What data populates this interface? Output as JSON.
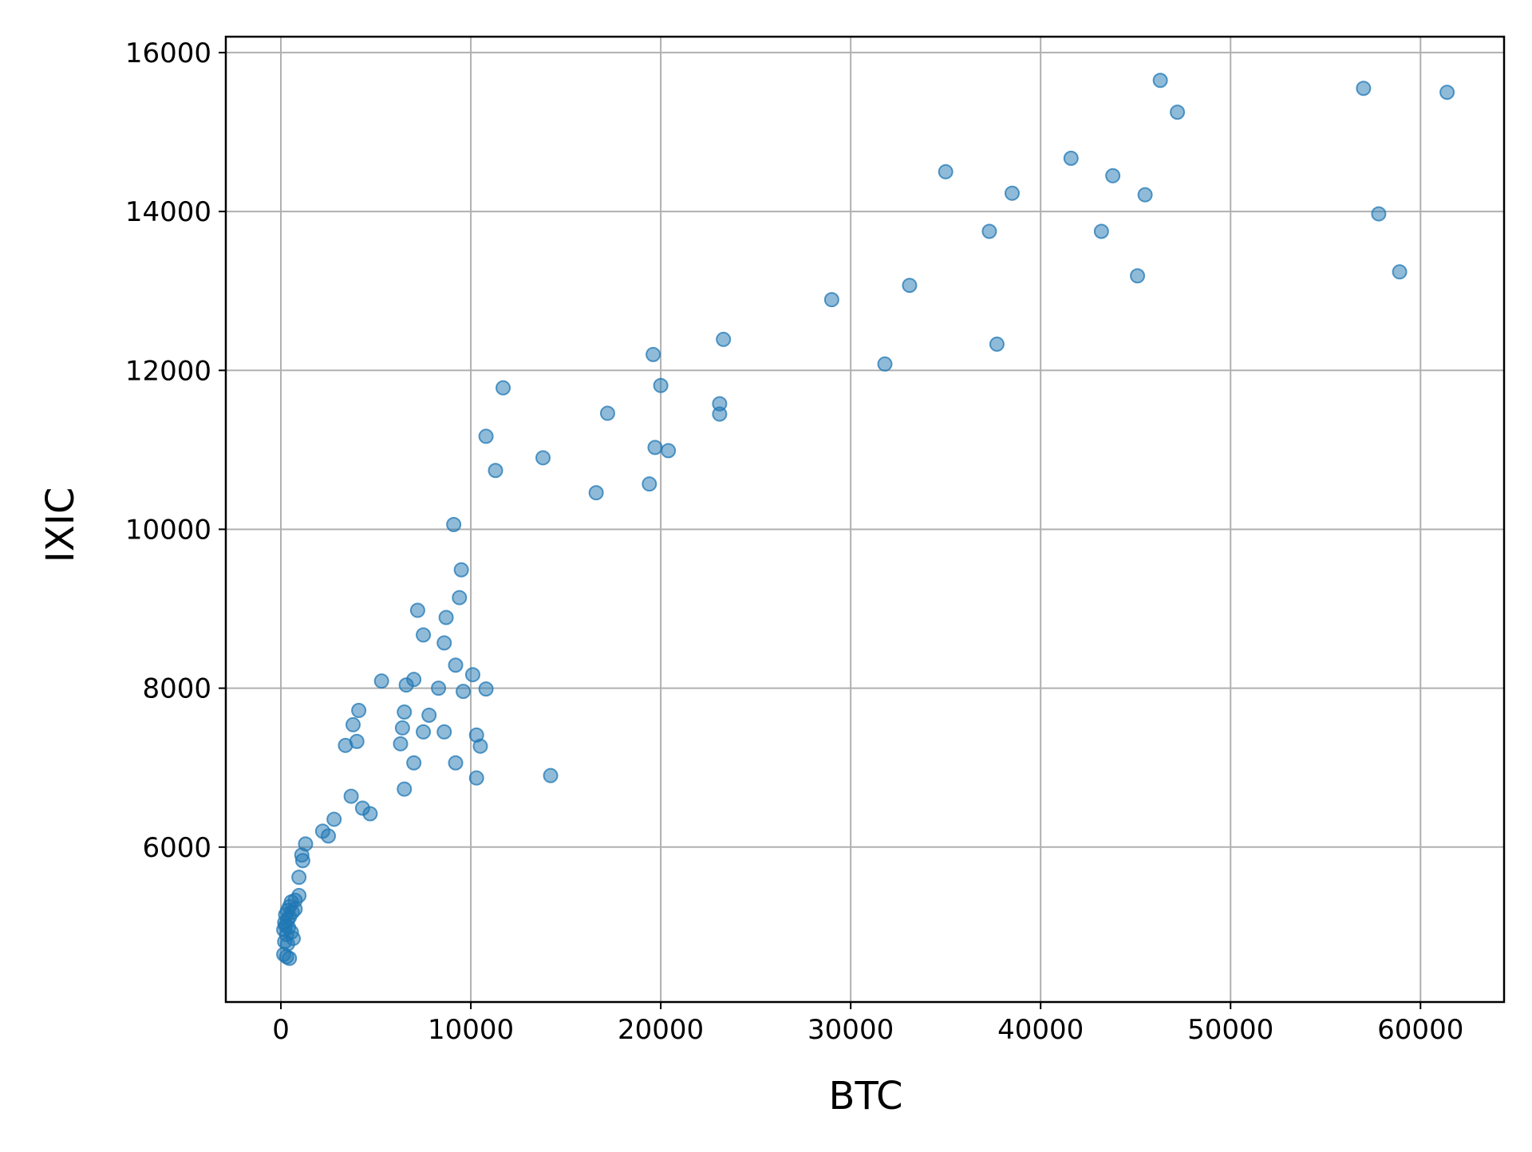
{
  "chart_data": {
    "type": "scatter",
    "title": "",
    "xlabel": "BTC",
    "ylabel": "IXIC",
    "xlim": [
      -2900,
      64400
    ],
    "ylim": [
      4050,
      16200
    ],
    "xticks": [
      0,
      10000,
      20000,
      30000,
      40000,
      50000,
      60000
    ],
    "yticks": [
      6000,
      8000,
      10000,
      12000,
      14000,
      16000
    ],
    "xtick_labels": [
      "0",
      "10000",
      "20000",
      "30000",
      "40000",
      "50000",
      "60000"
    ],
    "ytick_labels": [
      "6000",
      "8000",
      "10000",
      "12000",
      "14000",
      "16000"
    ],
    "grid": true,
    "legend": "none",
    "colors": {
      "marker": "#1f77b4",
      "grid": "#b0b0b0",
      "axes": "#000000"
    },
    "marker_opacity": 0.5,
    "series": [
      {
        "points": [
          [
            46300,
            15650
          ],
          [
            57000,
            15550
          ],
          [
            61400,
            15500
          ],
          [
            47200,
            15250
          ],
          [
            41600,
            14670
          ],
          [
            35000,
            14500
          ],
          [
            43800,
            14450
          ],
          [
            38500,
            14230
          ],
          [
            45500,
            14210
          ],
          [
            57800,
            13970
          ],
          [
            37300,
            13750
          ],
          [
            43200,
            13750
          ],
          [
            58900,
            13240
          ],
          [
            45100,
            13190
          ],
          [
            33100,
            13070
          ],
          [
            29000,
            12890
          ],
          [
            23300,
            12390
          ],
          [
            37700,
            12330
          ],
          [
            19600,
            12200
          ],
          [
            31800,
            12080
          ],
          [
            20000,
            11810
          ],
          [
            11700,
            11780
          ],
          [
            23100,
            11580
          ],
          [
            17200,
            11460
          ],
          [
            23100,
            11450
          ],
          [
            10800,
            11170
          ],
          [
            19700,
            11030
          ],
          [
            20400,
            10990
          ],
          [
            13800,
            10900
          ],
          [
            11300,
            10740
          ],
          [
            19400,
            10570
          ],
          [
            16600,
            10460
          ],
          [
            9100,
            10060
          ],
          [
            9500,
            9490
          ],
          [
            9400,
            9140
          ],
          [
            7200,
            8980
          ],
          [
            8700,
            8890
          ],
          [
            7500,
            8670
          ],
          [
            8600,
            8570
          ],
          [
            9200,
            8290
          ],
          [
            10100,
            8170
          ],
          [
            7000,
            8110
          ],
          [
            5300,
            8090
          ],
          [
            6600,
            8040
          ],
          [
            8300,
            8000
          ],
          [
            10800,
            7990
          ],
          [
            9600,
            7960
          ],
          [
            4100,
            7720
          ],
          [
            6500,
            7700
          ],
          [
            7800,
            7660
          ],
          [
            3800,
            7540
          ],
          [
            6400,
            7500
          ],
          [
            7500,
            7450
          ],
          [
            8600,
            7450
          ],
          [
            10300,
            7410
          ],
          [
            4000,
            7330
          ],
          [
            6300,
            7300
          ],
          [
            3400,
            7280
          ],
          [
            10500,
            7270
          ],
          [
            7000,
            7060
          ],
          [
            9200,
            7060
          ],
          [
            14200,
            6900
          ],
          [
            10300,
            6870
          ],
          [
            6500,
            6730
          ],
          [
            3700,
            6640
          ],
          [
            4300,
            6490
          ],
          [
            4700,
            6420
          ],
          [
            2800,
            6350
          ],
          [
            2200,
            6200
          ],
          [
            2500,
            6140
          ],
          [
            1300,
            6040
          ],
          [
            1100,
            5900
          ],
          [
            1150,
            5830
          ],
          [
            950,
            5620
          ],
          [
            950,
            5390
          ],
          [
            750,
            5330
          ],
          [
            550,
            5310
          ],
          [
            450,
            5250
          ],
          [
            750,
            5220
          ],
          [
            350,
            5200
          ],
          [
            600,
            5180
          ],
          [
            250,
            5150
          ],
          [
            450,
            5120
          ],
          [
            350,
            5080
          ],
          [
            200,
            5050
          ],
          [
            250,
            5010
          ],
          [
            400,
            4990
          ],
          [
            150,
            4960
          ],
          [
            550,
            4930
          ],
          [
            300,
            4900
          ],
          [
            650,
            4850
          ],
          [
            200,
            4810
          ],
          [
            350,
            4780
          ],
          [
            150,
            4650
          ],
          [
            300,
            4620
          ],
          [
            450,
            4600
          ]
        ]
      }
    ]
  }
}
